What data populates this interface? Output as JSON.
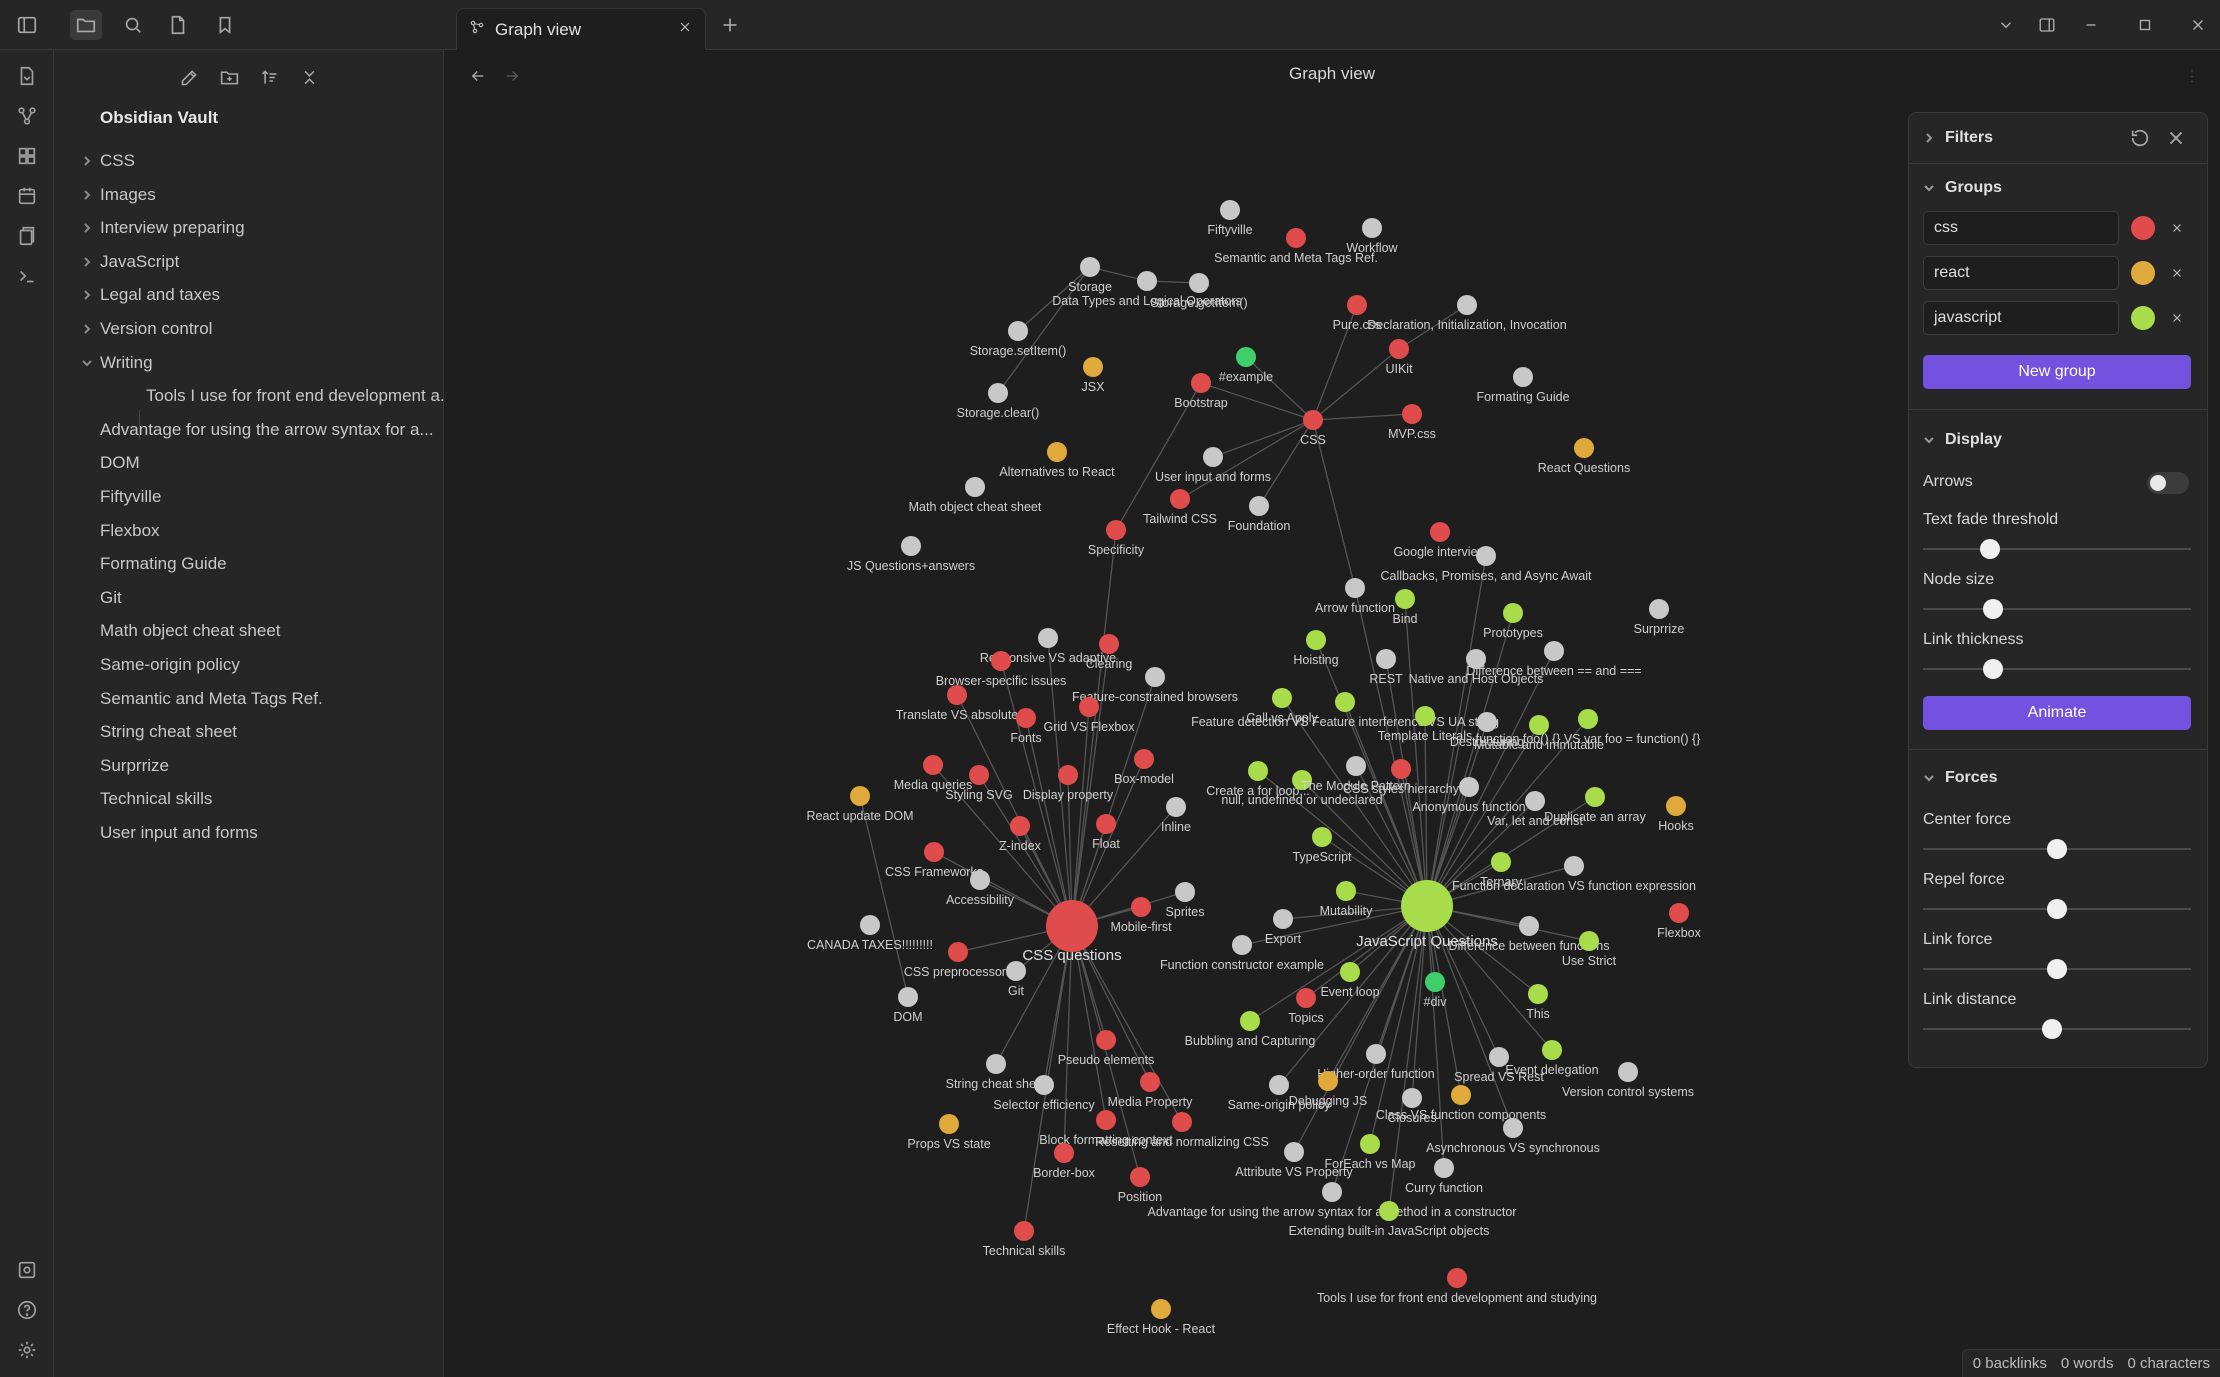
{
  "tab": {
    "title": "Graph view"
  },
  "header": {
    "title": "Graph view"
  },
  "sidebar": {
    "vault_name": "Obsidian Vault",
    "items": [
      {
        "label": "CSS",
        "folder": true,
        "expanded": false
      },
      {
        "label": "Images",
        "folder": true,
        "expanded": false
      },
      {
        "label": "Interview preparing",
        "folder": true,
        "expanded": false
      },
      {
        "label": "JavaScript",
        "folder": true,
        "expanded": false
      },
      {
        "label": "Legal and taxes",
        "folder": true,
        "expanded": false
      },
      {
        "label": "Version control",
        "folder": true,
        "expanded": false
      },
      {
        "label": "Writing",
        "folder": true,
        "expanded": true
      },
      {
        "label": "Tools I use for front end development a...",
        "folder": false,
        "child": true
      },
      {
        "label": "Advantage for using the arrow syntax for a...",
        "folder": false
      },
      {
        "label": "DOM",
        "folder": false
      },
      {
        "label": "Fiftyville",
        "folder": false
      },
      {
        "label": "Flexbox",
        "folder": false
      },
      {
        "label": "Formating Guide",
        "folder": false
      },
      {
        "label": "Git",
        "folder": false
      },
      {
        "label": "Math object cheat sheet",
        "folder": false
      },
      {
        "label": "Same-origin policy",
        "folder": false
      },
      {
        "label": "Semantic and Meta Tags Ref.",
        "folder": false
      },
      {
        "label": "String cheat sheet",
        "folder": false
      },
      {
        "label": "Surprrize",
        "folder": false
      },
      {
        "label": "Technical skills",
        "folder": false
      },
      {
        "label": "User input and forms",
        "folder": false
      }
    ]
  },
  "filters": {
    "filters_label": "Filters",
    "groups_label": "Groups",
    "groups": [
      {
        "query": "css",
        "color": "#e04b4b"
      },
      {
        "query": "react",
        "color": "#e0a93b"
      },
      {
        "query": "javascript",
        "color": "#a8dc4a"
      }
    ],
    "new_group_label": "New group",
    "display_label": "Display",
    "arrows_label": "Arrows",
    "arrows_on": false,
    "text_fade_label": "Text fade threshold",
    "text_fade_value": 0.25,
    "node_size_label": "Node size",
    "node_size_value": 0.26,
    "link_thickness_label": "Link thickness",
    "link_thickness_value": 0.26,
    "animate_label": "Animate",
    "forces_label": "Forces",
    "center_force_label": "Center force",
    "center_force_value": 0.5,
    "repel_force_label": "Repel force",
    "repel_force_value": 0.5,
    "link_force_label": "Link force",
    "link_force_value": 0.5,
    "link_distance_label": "Link distance",
    "link_distance_value": 0.48
  },
  "status": {
    "backlinks": "0 backlinks",
    "words": "0 words",
    "characters": "0 characters"
  },
  "colors": {
    "css": "#e04b4b",
    "react": "#e0a93b",
    "javascript": "#a8dc4a",
    "other": "#c8c8c8",
    "example": "#3ecf6a",
    "accent": "#7352e0"
  },
  "graph": {
    "nodes": [
      {
        "id": "css_q",
        "label": "CSS questions",
        "g": "css",
        "big": true
      },
      {
        "id": "js_q",
        "label": "JavaScript Questions",
        "g": "javascript",
        "big": true
      },
      {
        "id": "css",
        "label": "CSS",
        "g": "css"
      },
      {
        "id": "fiftyville",
        "label": "Fiftyville",
        "g": "other"
      },
      {
        "id": "semantic",
        "label": "Semantic and Meta Tags Ref.",
        "g": "css"
      },
      {
        "id": "workflow",
        "label": "Workflow",
        "g": "other"
      },
      {
        "id": "storage",
        "label": "Storage",
        "g": "other"
      },
      {
        "id": "datatypes",
        "label": "Data Types and Logical Operators",
        "g": "other"
      },
      {
        "id": "getitem",
        "label": "Storage.getItem()",
        "g": "other"
      },
      {
        "id": "setitem",
        "label": "Storage.setItem()",
        "g": "other"
      },
      {
        "id": "clear",
        "label": "Storage.clear()",
        "g": "other"
      },
      {
        "id": "jsx",
        "label": "JSX",
        "g": "react"
      },
      {
        "id": "example",
        "label": "#example",
        "g": "example"
      },
      {
        "id": "bootstrap",
        "label": "Bootstrap",
        "g": "css"
      },
      {
        "id": "purecss",
        "label": "Pure.css",
        "g": "css"
      },
      {
        "id": "decl",
        "label": "Declaration, Initialization, Invocation",
        "g": "other"
      },
      {
        "id": "uikit",
        "label": "UIKit",
        "g": "css"
      },
      {
        "id": "formating",
        "label": "Formating Guide",
        "g": "other"
      },
      {
        "id": "mvpcss",
        "label": "MVP.css",
        "g": "css"
      },
      {
        "id": "reactq",
        "label": "React Questions",
        "g": "react"
      },
      {
        "id": "alternatives",
        "label": "Alternatives to React",
        "g": "react"
      },
      {
        "id": "userinput",
        "label": "User input and forms",
        "g": "other"
      },
      {
        "id": "tailwind",
        "label": "Tailwind CSS",
        "g": "css"
      },
      {
        "id": "foundation",
        "label": "Foundation",
        "g": "other"
      },
      {
        "id": "mathobj",
        "label": "Math object cheat sheet",
        "g": "other"
      },
      {
        "id": "specificity",
        "label": "Specificity",
        "g": "css"
      },
      {
        "id": "jsqa",
        "label": "JS Questions+answers",
        "g": "other"
      },
      {
        "id": "google",
        "label": "Google interview",
        "g": "css"
      },
      {
        "id": "callbacks",
        "label": "Callbacks, Promises, and Async Await",
        "g": "other"
      },
      {
        "id": "arrowfn",
        "label": "Arrow function",
        "g": "other"
      },
      {
        "id": "bind",
        "label": "Bind",
        "g": "javascript"
      },
      {
        "id": "prototypes",
        "label": "Prototypes",
        "g": "javascript"
      },
      {
        "id": "surprrize",
        "label": "Surprrize",
        "g": "other"
      },
      {
        "id": "hoisting",
        "label": "Hoisting",
        "g": "javascript"
      },
      {
        "id": "rest",
        "label": "REST",
        "g": "other"
      },
      {
        "id": "native",
        "label": "Native and Host Objects",
        "g": "other"
      },
      {
        "id": "diffeq",
        "label": "Difference between == and ===",
        "g": "other"
      },
      {
        "id": "respvsad",
        "label": "Responsive VS adaptive",
        "g": "other"
      },
      {
        "id": "clearing",
        "label": "Clearing",
        "g": "css"
      },
      {
        "id": "browserspec",
        "label": "Browser-specific issues",
        "g": "css"
      },
      {
        "id": "featconst",
        "label": "Feature-constrained browsers",
        "g": "other"
      },
      {
        "id": "translate",
        "label": "Translate VS absolute",
        "g": "css"
      },
      {
        "id": "gridflex",
        "label": "Grid VS Flexbox",
        "g": "css"
      },
      {
        "id": "fonts",
        "label": "Fonts",
        "g": "css"
      },
      {
        "id": "callapply",
        "label": "Call vs Apply",
        "g": "javascript"
      },
      {
        "id": "featdetect",
        "label": "Feature detection VS Feature interference VS UA string",
        "g": "javascript"
      },
      {
        "id": "template",
        "label": "Template Literals",
        "g": "javascript"
      },
      {
        "id": "destructuring",
        "label": "Destructuring",
        "g": "other"
      },
      {
        "id": "mutable",
        "label": "Mutable and immutable",
        "g": "javascript"
      },
      {
        "id": "funcfoo",
        "label": "function foo() {} VS var foo = function() {}",
        "g": "javascript"
      },
      {
        "id": "mediaq",
        "label": "Media queries",
        "g": "css"
      },
      {
        "id": "stylingsvg",
        "label": "Styling SVG",
        "g": "css"
      },
      {
        "id": "displayprop",
        "label": "Display property",
        "g": "css"
      },
      {
        "id": "boxmodel",
        "label": "Box-model",
        "g": "css"
      },
      {
        "id": "createfor",
        "label": "Create a for loop...",
        "g": "javascript"
      },
      {
        "id": "nullundef",
        "label": "null, undefined or undeclared",
        "g": "javascript"
      },
      {
        "id": "module",
        "label": "The Module Pattern",
        "g": "other"
      },
      {
        "id": "cssstyles",
        "label": "CSS styles hierarchy",
        "g": "css"
      },
      {
        "id": "anonfn",
        "label": "Anonymous function",
        "g": "other"
      },
      {
        "id": "varlet",
        "label": "Var, let and const",
        "g": "other"
      },
      {
        "id": "duparr",
        "label": "Duplicate an array",
        "g": "javascript"
      },
      {
        "id": "hooks",
        "label": "Hooks",
        "g": "react"
      },
      {
        "id": "reactdom",
        "label": "React update DOM",
        "g": "react"
      },
      {
        "id": "zindex",
        "label": "Z-index",
        "g": "css"
      },
      {
        "id": "float",
        "label": "Float",
        "g": "css"
      },
      {
        "id": "inline",
        "label": "Inline",
        "g": "other"
      },
      {
        "id": "typescript",
        "label": "TypeScript",
        "g": "javascript"
      },
      {
        "id": "cssfw",
        "label": "CSS Frameworks",
        "g": "css"
      },
      {
        "id": "access",
        "label": "Accessibility",
        "g": "other"
      },
      {
        "id": "sprites",
        "label": "Sprites",
        "g": "other"
      },
      {
        "id": "mobile",
        "label": "Mobile-first",
        "g": "css"
      },
      {
        "id": "mutability",
        "label": "Mutability",
        "g": "javascript"
      },
      {
        "id": "ternary",
        "label": "Ternary",
        "g": "javascript"
      },
      {
        "id": "funcdecl",
        "label": "Function declaration VS function expression",
        "g": "other"
      },
      {
        "id": "flexbox",
        "label": "Flexbox",
        "g": "css"
      },
      {
        "id": "canada",
        "label": "CANADA TAXES!!!!!!!!!",
        "g": "other"
      },
      {
        "id": "export",
        "label": "Export",
        "g": "other"
      },
      {
        "id": "diffbetween",
        "label": "Difference between functions",
        "g": "other"
      },
      {
        "id": "usestrict",
        "label": "Use Strict",
        "g": "javascript"
      },
      {
        "id": "cssprep",
        "label": "CSS preprocessors",
        "g": "css"
      },
      {
        "id": "git",
        "label": "Git",
        "g": "other"
      },
      {
        "id": "funcctor",
        "label": "Function constructor example",
        "g": "other"
      },
      {
        "id": "eventloop",
        "label": "Event loop",
        "g": "javascript"
      },
      {
        "id": "div",
        "label": "#div",
        "g": "example"
      },
      {
        "id": "dom",
        "label": "DOM",
        "g": "other"
      },
      {
        "id": "topics",
        "label": "Topics",
        "g": "css"
      },
      {
        "id": "this",
        "label": "This",
        "g": "javascript"
      },
      {
        "id": "bubbling",
        "label": "Bubbling and Capturing",
        "g": "javascript"
      },
      {
        "id": "pseudo",
        "label": "Pseudo elements",
        "g": "css"
      },
      {
        "id": "stringcheat",
        "label": "String cheat sheet",
        "g": "other"
      },
      {
        "id": "higher",
        "label": "Higher-order function",
        "g": "other"
      },
      {
        "id": "spread",
        "label": "Spread VS Rest",
        "g": "other"
      },
      {
        "id": "eventdel",
        "label": "Event delegation",
        "g": "javascript"
      },
      {
        "id": "versionctl",
        "label": "Version control systems",
        "g": "other"
      },
      {
        "id": "selector",
        "label": "Selector efficiency",
        "g": "other"
      },
      {
        "id": "mediaprop",
        "label": "Media Property",
        "g": "css"
      },
      {
        "id": "sameorigin",
        "label": "Same-origin policy",
        "g": "other"
      },
      {
        "id": "debugging",
        "label": "Debugging JS",
        "g": "react"
      },
      {
        "id": "closures",
        "label": "Closures",
        "g": "other"
      },
      {
        "id": "classvs",
        "label": "Class VS function components",
        "g": "react"
      },
      {
        "id": "propsstate",
        "label": "Props VS state",
        "g": "react"
      },
      {
        "id": "blockfmt",
        "label": "Block formatting context",
        "g": "css"
      },
      {
        "id": "resetting",
        "label": "Resetting and normalizing CSS",
        "g": "css"
      },
      {
        "id": "async",
        "label": "Asynchronous VS synchronous",
        "g": "other"
      },
      {
        "id": "attrprop",
        "label": "Attribute VS Property",
        "g": "other"
      },
      {
        "id": "foreach",
        "label": "ForEach vs Map",
        "g": "javascript"
      },
      {
        "id": "borderbox",
        "label": "Border-box",
        "g": "css"
      },
      {
        "id": "position",
        "label": "Position",
        "g": "css"
      },
      {
        "id": "curry",
        "label": "Curry function",
        "g": "other"
      },
      {
        "id": "advantage",
        "label": "Advantage for using the arrow syntax for a method in a constructor",
        "g": "other"
      },
      {
        "id": "extending",
        "label": "Extending built-in JavaScript objects",
        "g": "javascript"
      },
      {
        "id": "techskills",
        "label": "Technical skills",
        "g": "css"
      },
      {
        "id": "tools",
        "label": "Tools I use for front end development and studying",
        "g": "css"
      },
      {
        "id": "effect",
        "label": "Effect Hook - React",
        "g": "react"
      }
    ]
  }
}
